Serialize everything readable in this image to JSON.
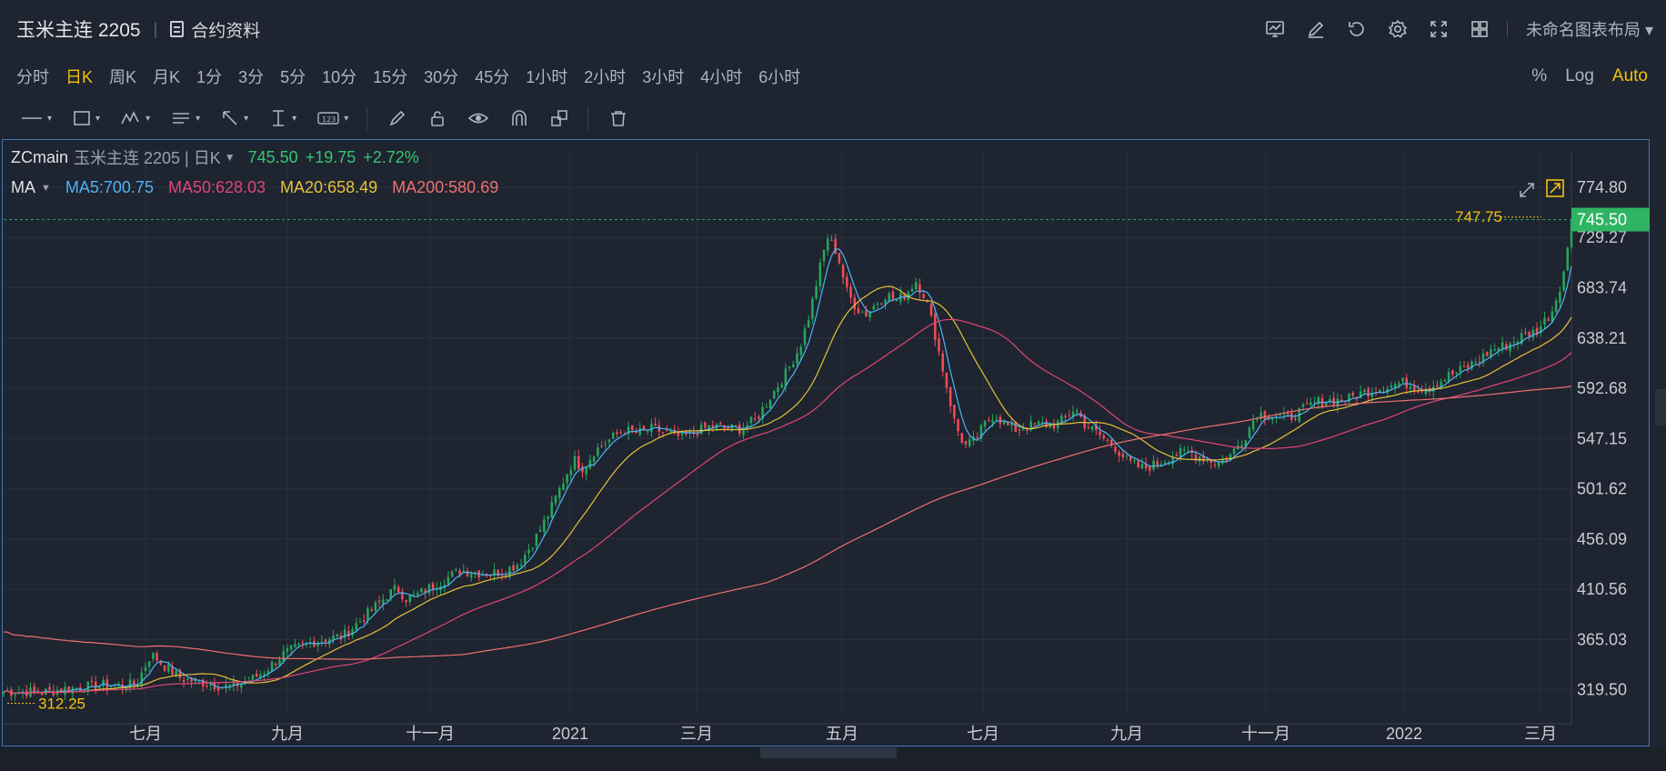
{
  "header": {
    "symbol": "玉米主连 2205",
    "info_label": "合约资料",
    "layout_name": "未命名图表布局",
    "icons": [
      "chart-icon",
      "draw-icon",
      "undo-icon",
      "gear-icon",
      "fullscreen-icon",
      "grid-icon"
    ]
  },
  "intervals": [
    "分时",
    "日K",
    "周K",
    "月K",
    "1分",
    "3分",
    "5分",
    "10分",
    "15分",
    "30分",
    "45分",
    "1小时",
    "2小时",
    "3小时",
    "4小时",
    "6小时"
  ],
  "active_interval": "日K",
  "scale_modes": [
    "%",
    "Log",
    "Auto"
  ],
  "active_scale": "Auto",
  "legend": {
    "code": "ZCmain",
    "name": "玉米主连 2205 | 日K",
    "price": "745.50",
    "change": "+19.75",
    "change_pct": "+2.72%",
    "ma_label": "MA",
    "ma5": "MA5:700.75",
    "ma50": "MA50:628.03",
    "ma20": "MA20:658.49",
    "ma200": "MA200:580.69"
  },
  "colors": {
    "up": "#26a65b",
    "down": "#ef4d57",
    "ma5": "#4fb3f2",
    "ma50": "#e0457b",
    "ma20": "#e6c13a",
    "ma200": "#f07070",
    "accent": "#f3c20d"
  },
  "chart_data": {
    "type": "line",
    "ylim": [
      297,
      783
    ],
    "y_ticks": [
      "774.80",
      "729.27",
      "683.74",
      "638.21",
      "592.68",
      "547.15",
      "501.62",
      "456.09",
      "410.56",
      "365.03",
      "319.50"
    ],
    "x_ticks": [
      "七月",
      "九月",
      "十一月",
      "2021",
      "三月",
      "五月",
      "七月",
      "九月",
      "十一月",
      "2022",
      "三月"
    ],
    "last_price": "745.50",
    "high_label": "747.75",
    "low_label": "312.25",
    "close_series": [
      [
        0,
        318
      ],
      [
        20,
        318
      ],
      [
        40,
        317
      ],
      [
        60,
        320
      ],
      [
        80,
        322
      ],
      [
        100,
        324
      ],
      [
        120,
        323
      ],
      [
        135,
        325
      ],
      [
        150,
        352
      ],
      [
        165,
        340
      ],
      [
        180,
        330
      ],
      [
        195,
        327
      ],
      [
        210,
        325
      ],
      [
        225,
        322
      ],
      [
        240,
        325
      ],
      [
        255,
        330
      ],
      [
        270,
        340
      ],
      [
        285,
        352
      ],
      [
        300,
        358
      ],
      [
        315,
        363
      ],
      [
        330,
        366
      ],
      [
        345,
        368
      ],
      [
        360,
        380
      ],
      [
        375,
        392
      ],
      [
        390,
        405
      ],
      [
        400,
        412
      ],
      [
        410,
        402
      ],
      [
        420,
        405
      ],
      [
        435,
        413
      ],
      [
        450,
        420
      ],
      [
        465,
        428
      ],
      [
        480,
        426
      ],
      [
        495,
        425
      ],
      [
        510,
        427
      ],
      [
        525,
        435
      ],
      [
        540,
        455
      ],
      [
        555,
        480
      ],
      [
        570,
        510
      ],
      [
        580,
        528
      ],
      [
        590,
        520
      ],
      [
        600,
        535
      ],
      [
        615,
        545
      ],
      [
        630,
        555
      ],
      [
        645,
        552
      ],
      [
        660,
        556
      ],
      [
        675,
        552
      ],
      [
        690,
        548
      ],
      [
        705,
        554
      ],
      [
        720,
        558
      ],
      [
        735,
        556
      ],
      [
        750,
        556
      ],
      [
        765,
        564
      ],
      [
        780,
        585
      ],
      [
        795,
        605
      ],
      [
        810,
        630
      ],
      [
        820,
        660
      ],
      [
        830,
        700
      ],
      [
        838,
        730
      ],
      [
        848,
        715
      ],
      [
        858,
        680
      ],
      [
        868,
        665
      ],
      [
        878,
        660
      ],
      [
        888,
        670
      ],
      [
        898,
        678
      ],
      [
        908,
        672
      ],
      [
        918,
        678
      ],
      [
        928,
        690
      ],
      [
        938,
        675
      ],
      [
        948,
        640
      ],
      [
        958,
        600
      ],
      [
        968,
        560
      ],
      [
        978,
        540
      ],
      [
        988,
        545
      ],
      [
        998,
        560
      ],
      [
        1008,
        570
      ],
      [
        1018,
        560
      ],
      [
        1028,
        555
      ],
      [
        1040,
        558
      ],
      [
        1055,
        560
      ],
      [
        1070,
        560
      ],
      [
        1080,
        565
      ],
      [
        1090,
        575
      ],
      [
        1100,
        560
      ],
      [
        1115,
        550
      ],
      [
        1130,
        540
      ],
      [
        1145,
        525
      ],
      [
        1160,
        520
      ],
      [
        1175,
        525
      ],
      [
        1190,
        532
      ],
      [
        1205,
        535
      ],
      [
        1220,
        530
      ],
      [
        1235,
        525
      ],
      [
        1248,
        532
      ],
      [
        1262,
        548
      ],
      [
        1275,
        570
      ],
      [
        1290,
        568
      ],
      [
        1305,
        565
      ],
      [
        1320,
        572
      ],
      [
        1335,
        580
      ],
      [
        1350,
        582
      ],
      [
        1365,
        582
      ],
      [
        1380,
        588
      ],
      [
        1395,
        592
      ],
      [
        1410,
        595
      ],
      [
        1425,
        598
      ],
      [
        1440,
        592
      ],
      [
        1455,
        596
      ],
      [
        1470,
        604
      ],
      [
        1485,
        610
      ],
      [
        1500,
        618
      ],
      [
        1515,
        628
      ],
      [
        1530,
        632
      ],
      [
        1545,
        640
      ],
      [
        1560,
        645
      ],
      [
        1575,
        662
      ],
      [
        1585,
        690
      ],
      [
        1590,
        710
      ],
      [
        1595,
        745.5
      ]
    ]
  }
}
